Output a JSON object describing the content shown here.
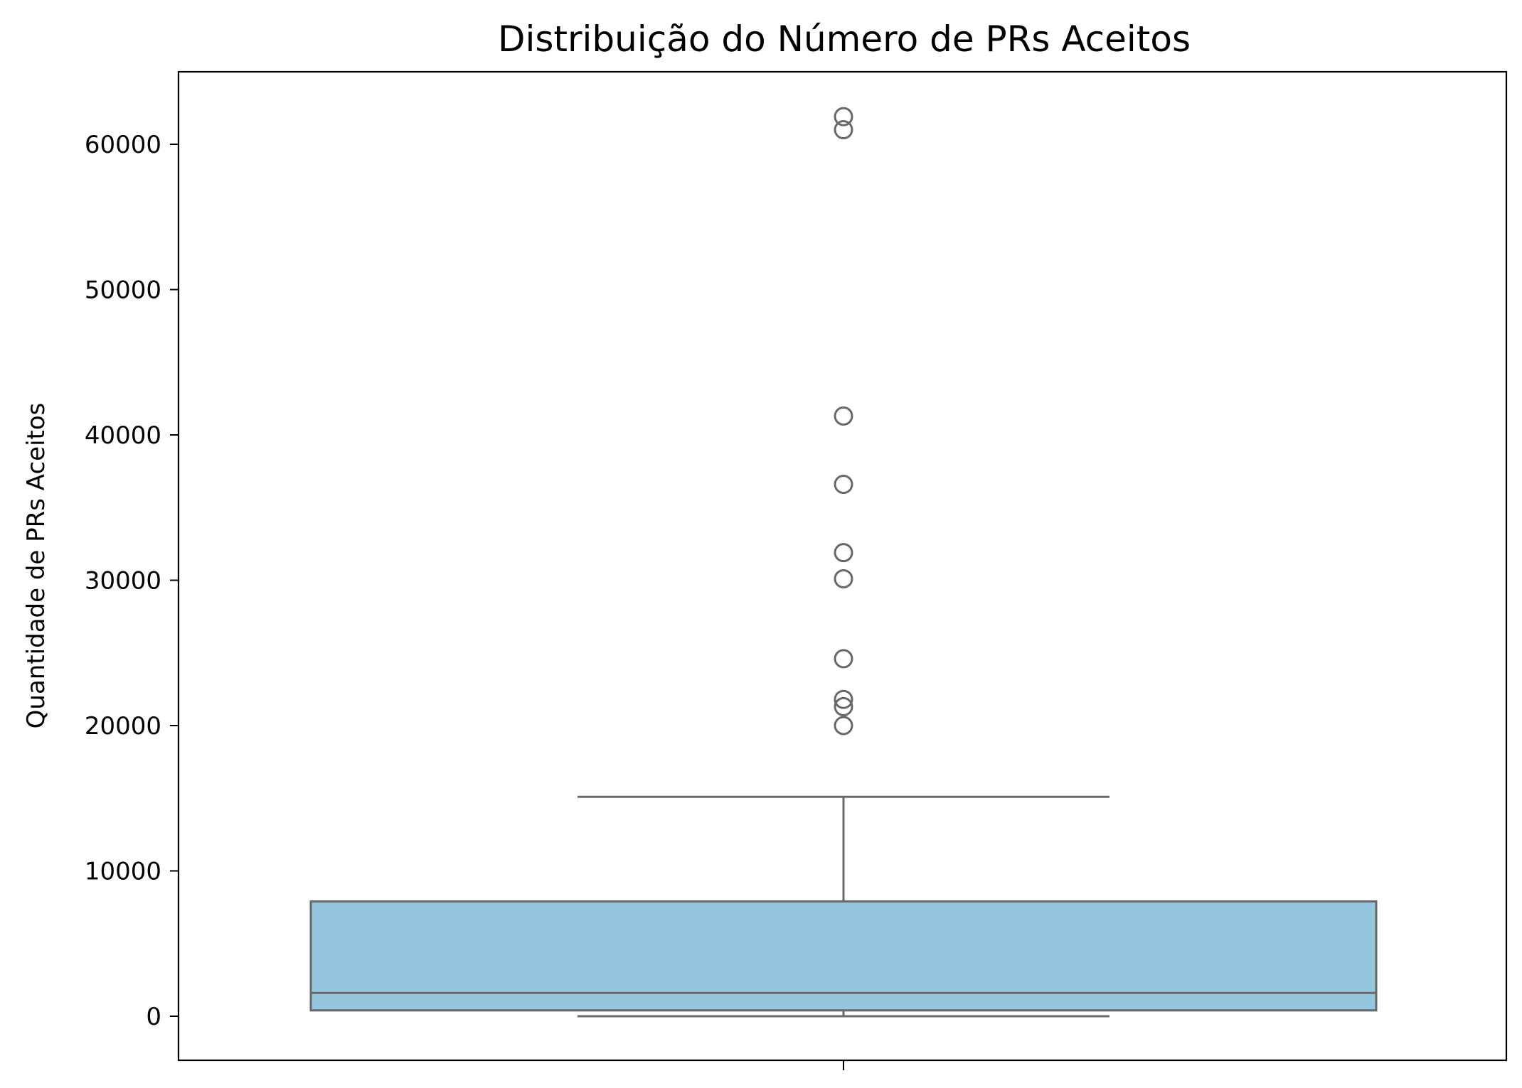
{
  "chart_data": {
    "type": "box",
    "title": "Distribuição do Número de PRs Aceitos",
    "xlabel": "",
    "ylabel": "Quantidade de PRs Aceitos",
    "ylim": [
      -3000,
      65000
    ],
    "yticks": [
      0,
      10000,
      20000,
      30000,
      40000,
      50000,
      60000
    ],
    "yticklabels": [
      "0",
      "10000",
      "20000",
      "30000",
      "40000",
      "50000",
      "60000"
    ],
    "grid": false,
    "legend": "none",
    "box": {
      "whisker_low": 0,
      "q1": 400,
      "median": 1600,
      "q3": 7900,
      "whisker_high": 15100
    },
    "outliers": [
      61900,
      61000,
      41300,
      36600,
      31900,
      30100,
      24600,
      21800,
      21300,
      20000
    ],
    "colors": {
      "box_fill": "#94c6dd",
      "box_edge": "#686868",
      "axes": "#000000"
    }
  }
}
